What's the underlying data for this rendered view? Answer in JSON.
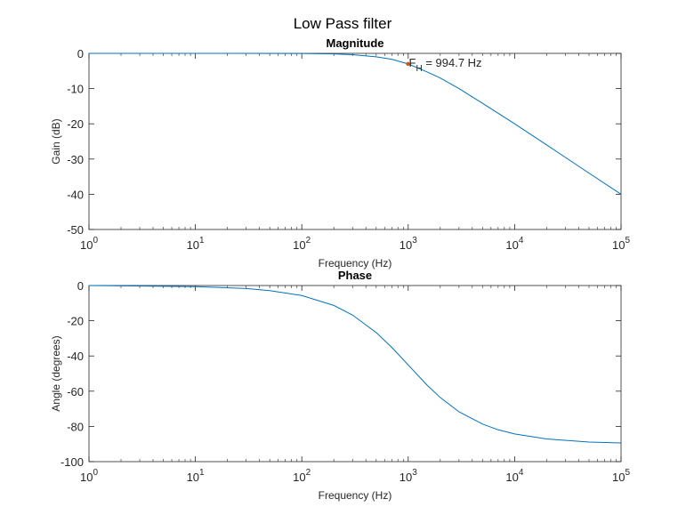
{
  "figure": {
    "sup_title": "Low Pass filter"
  },
  "chart_data": [
    {
      "type": "line",
      "title": "Magnitude",
      "xlabel": "Frequency (Hz)",
      "ylabel": "Gain (dB)",
      "xscale": "log",
      "xlim": [
        1,
        100000
      ],
      "ylim": [
        -50,
        0
      ],
      "xticks": [
        1,
        10,
        100,
        1000,
        10000,
        100000
      ],
      "xtick_labels": [
        {
          "base": "10",
          "exp": "0"
        },
        {
          "base": "10",
          "exp": "1"
        },
        {
          "base": "10",
          "exp": "2"
        },
        {
          "base": "10",
          "exp": "3"
        },
        {
          "base": "10",
          "exp": "4"
        },
        {
          "base": "10",
          "exp": "5"
        }
      ],
      "yticks": [
        0,
        -10,
        -20,
        -30,
        -40,
        -50
      ],
      "ytick_labels": [
        "0",
        "-10",
        "-20",
        "-30",
        "-40",
        "-50"
      ],
      "grid": false,
      "line_color": "#0072BD",
      "cutoff_hz": 994.7,
      "series": [
        {
          "x": [
            1,
            10,
            100,
            200,
            300,
            500,
            700,
            1000,
            1500,
            2000,
            3000,
            5000,
            7000,
            10000,
            20000,
            50000,
            100000
          ],
          "y": [
            0,
            0,
            -0.04,
            -0.17,
            -0.37,
            -0.97,
            -1.68,
            -3.0,
            -5.25,
            -7.0,
            -10.0,
            -14.2,
            -17.0,
            -20.0,
            -26.0,
            -34.0,
            -40.0
          ]
        }
      ],
      "annotation": {
        "x": 994.7,
        "y": -3.0,
        "marker_color": "#D95319",
        "label_main": "F",
        "label_sub": "H",
        "label_rest": " = 994.7 Hz"
      }
    },
    {
      "type": "line",
      "title": "Phase",
      "xlabel": "Frequency (Hz)",
      "ylabel": "Angle (degrees)",
      "xscale": "log",
      "xlim": [
        1,
        100000
      ],
      "ylim": [
        -100,
        0
      ],
      "xticks": [
        1,
        10,
        100,
        1000,
        10000,
        100000
      ],
      "xtick_labels": [
        {
          "base": "10",
          "exp": "0"
        },
        {
          "base": "10",
          "exp": "1"
        },
        {
          "base": "10",
          "exp": "2"
        },
        {
          "base": "10",
          "exp": "3"
        },
        {
          "base": "10",
          "exp": "4"
        },
        {
          "base": "10",
          "exp": "5"
        }
      ],
      "yticks": [
        0,
        -20,
        -40,
        -60,
        -80,
        -100
      ],
      "ytick_labels": [
        "0",
        "-20",
        "-40",
        "-60",
        "-80",
        "-100"
      ],
      "grid": false,
      "line_color": "#0072BD",
      "series": [
        {
          "x": [
            1,
            10,
            30,
            50,
            100,
            200,
            300,
            500,
            700,
            1000,
            1500,
            2000,
            3000,
            5000,
            7000,
            10000,
            20000,
            50000,
            100000
          ],
          "y": [
            0,
            -0.6,
            -1.7,
            -2.9,
            -5.7,
            -11.3,
            -16.8,
            -26.7,
            -35.1,
            -45.1,
            -56.5,
            -63.6,
            -71.7,
            -78.7,
            -81.9,
            -84.3,
            -87.1,
            -88.9,
            -89.4
          ]
        }
      ]
    }
  ]
}
